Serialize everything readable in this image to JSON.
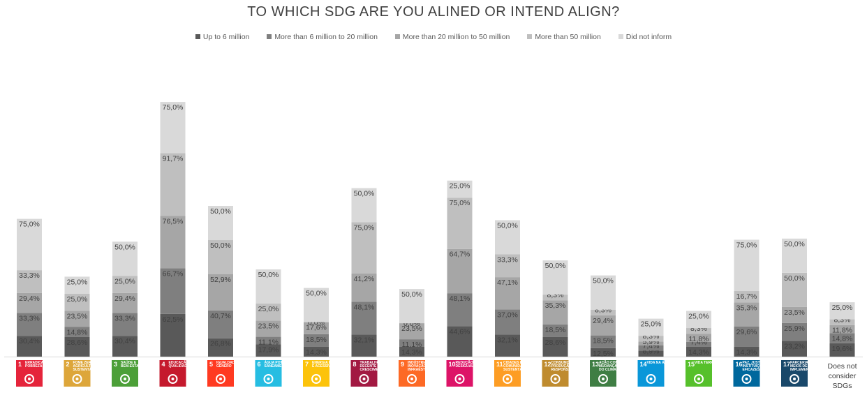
{
  "chart_data": {
    "type": "bar",
    "stacked": true,
    "title": "TO WHICH SDG ARE YOU ALINED OR INTEND ALIGN?",
    "legend_position": "top",
    "series": [
      {
        "name": "Up to 6 million",
        "color": "#595959",
        "values": [
          "30,4%",
          "28,6%",
          "30,4%",
          "62,5%",
          "26,8%",
          "17,9%",
          "14,3%",
          "32,1%",
          "14,3%",
          "44,6%",
          "32,1%",
          "28,6%",
          "12,5%",
          "8,9%",
          "14,3%",
          "14,3%",
          "23,2%",
          "19,6%"
        ]
      },
      {
        "name": "More than 6 million to 20 million",
        "color": "#7f7f7f",
        "values": [
          "33,3%",
          "14,8%",
          "33,3%",
          "66,7%",
          "40,7%",
          "11,1%",
          "18,5%",
          "48,1%",
          "11,1%",
          "48,1%",
          "37,0%",
          "18,5%",
          "18,5%",
          "7,4%",
          "7,4%",
          "29,6%",
          "25,9%",
          "14,8%"
        ]
      },
      {
        "name": "More than 20 million to 50 million",
        "color": "#a6a6a6",
        "values": [
          "29,4%",
          "23,5%",
          "29,4%",
          "76,5%",
          "52,9%",
          "23,5%",
          "17,6%",
          "41,2%",
          "23,5%",
          "64,7%",
          "47,1%",
          "35,3%",
          "29,4%",
          "5,9%",
          "11,8%",
          "35,3%",
          "23,5%",
          "11,8%"
        ]
      },
      {
        "name": "More than 50 million",
        "color": "#bfbfbf",
        "values": [
          "33,3%",
          "25,0%",
          "25,0%",
          "91,7%",
          "50,0%",
          "25,0%",
          "0,0%",
          "75,0%",
          "0,0%",
          "75,0%",
          "33,3%",
          "8,3%",
          "8,3%",
          "8,3%",
          "8,3%",
          "16,7%",
          "50,0%",
          "8,3%"
        ]
      },
      {
        "name": "Did not inform",
        "color": "#d9d9d9",
        "values": [
          "75,0%",
          "25,0%",
          "50,0%",
          "75,0%",
          "50,0%",
          "50,0%",
          "50,0%",
          "50,0%",
          "50,0%",
          "25,0%",
          "50,0%",
          "50,0%",
          "50,0%",
          "25,0%",
          "25,0%",
          "75,0%",
          "50,0%",
          "25,0%"
        ]
      }
    ],
    "categories": [
      {
        "number": "1",
        "text": "ERRADICAÇÃO DA POBREZA",
        "color": "#e5243b",
        "icon": "family-icon"
      },
      {
        "number": "2",
        "text": "FOME ZERO E AGRICULTURA SUSTENTÁVEL",
        "color": "#dda63a",
        "icon": "bowl-icon"
      },
      {
        "number": "3",
        "text": "SAÚDE E BEM-ESTAR",
        "color": "#4c9f38",
        "icon": "heartbeat-icon"
      },
      {
        "number": "4",
        "text": "EDUCAÇÃO DE QUALIDADE",
        "color": "#c5192d",
        "icon": "book-icon"
      },
      {
        "number": "5",
        "text": "IGUALDADE DE GÊNERO",
        "color": "#ff3a21",
        "icon": "gender-icon"
      },
      {
        "number": "6",
        "text": "ÁGUA POTÁVEL E SANEAMENTO",
        "color": "#26bde2",
        "icon": "water-icon"
      },
      {
        "number": "7",
        "text": "ENERGIA LIMPA E ACESSÍVEL",
        "color": "#fcc30b",
        "icon": "sun-icon"
      },
      {
        "number": "8",
        "text": "TRABALHO DECENTE E CRESCIMENTO ECONÔMICO",
        "color": "#a21942",
        "icon": "growth-chart-icon"
      },
      {
        "number": "9",
        "text": "INDÚSTRIA, INOVAÇÃO E INFRAESTRUTURA",
        "color": "#fd6925",
        "icon": "cubes-icon"
      },
      {
        "number": "10",
        "text": "REDUÇÃO DAS DESIGUALDADES",
        "color": "#dd1367",
        "icon": "equality-icon"
      },
      {
        "number": "11",
        "text": "CIDADES E COMUNIDADES SUSTENTÁVEIS",
        "color": "#fd9d24",
        "icon": "buildings-icon"
      },
      {
        "number": "12",
        "text": "CONSUMO E PRODUÇÃO RESPONSÁVEIS",
        "color": "#bf8b2e",
        "icon": "infinity-icon"
      },
      {
        "number": "13",
        "text": "AÇÃO CONTRA A MUDANÇA GLOBAL DO CLIMA",
        "color": "#3f7e44",
        "icon": "eye-globe-icon"
      },
      {
        "number": "14",
        "text": "VIDA NA ÁGUA",
        "color": "#0a97d9",
        "icon": "fish-icon"
      },
      {
        "number": "15",
        "text": "VIDA TERRESTRE",
        "color": "#56c02b",
        "icon": "tree-icon"
      },
      {
        "number": "16",
        "text": "PAZ, JUSTIÇA E INSTITUIÇÕES EFICAZES",
        "color": "#00689d",
        "icon": "dove-icon"
      },
      {
        "number": "17",
        "text": "PARCERIAS E MEIOS DE IMPLEMENTAÇÃO",
        "color": "#19486a",
        "icon": "flower-rings-icon"
      },
      {
        "text_lines": [
          "Does not",
          "consider",
          "SDGs"
        ]
      }
    ]
  }
}
